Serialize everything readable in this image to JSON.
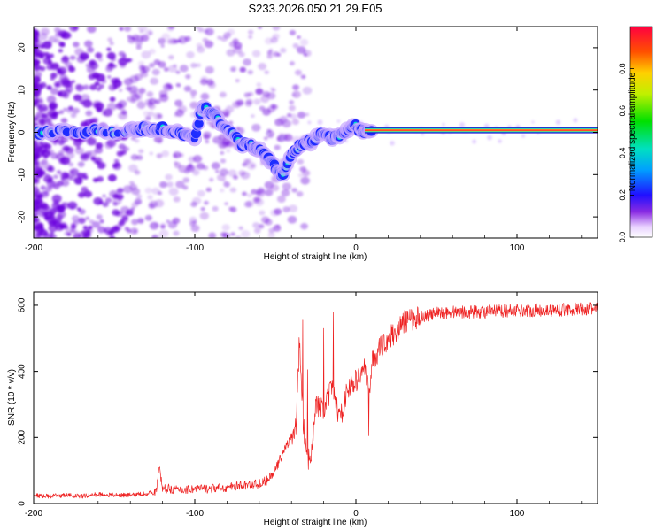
{
  "title": "S233.2026.050.21.29.E05",
  "colors": {
    "snr_line": "#ee2222",
    "ridge_high": "#ff0040",
    "ridge_mid": "#00ddcc",
    "ridge_low": "#1020ff",
    "noise": "#6a00dd"
  },
  "chart_data": [
    {
      "type": "heatmap",
      "name": "spectrogram",
      "title": "S233.2026.050.21.29.E05",
      "xlabel": "Height of straight line (km)",
      "ylabel": "Frequency (Hz)",
      "xlim": [
        -200,
        150
      ],
      "ylim": [
        -25,
        25
      ],
      "xticks": [
        -200,
        -100,
        0,
        100
      ],
      "xtick_labels": [
        "-200",
        "-100",
        "0",
        "100"
      ],
      "yticks": [
        -20,
        -10,
        0,
        10,
        20
      ],
      "ytick_labels": [
        "-20",
        "-10",
        "0",
        "10",
        "20"
      ],
      "ridge": {
        "description": "doppler tone frequency vs height",
        "x": [
          -200,
          -190,
          -180,
          -170,
          -160,
          -150,
          -140,
          -130,
          -120,
          -115,
          -110,
          -105,
          -100,
          -95,
          -92,
          -88,
          -84,
          -80,
          -75,
          -70,
          -65,
          -60,
          -55,
          -50,
          -47,
          -44,
          -42,
          -40,
          -37,
          -34,
          -30,
          -27,
          -24,
          -20,
          -17,
          -14,
          -11,
          -8,
          -5,
          -2,
          0,
          2,
          5,
          10,
          20,
          40,
          60,
          80,
          100,
          120,
          150
        ],
        "y": [
          0,
          0,
          0.5,
          0,
          0.5,
          0,
          0.5,
          0.8,
          0.8,
          0.5,
          0,
          -0.5,
          -1,
          6,
          5,
          4,
          2,
          1,
          -1,
          -3,
          -3,
          -4,
          -6,
          -8,
          -10,
          -9,
          -7,
          -5,
          -4,
          -3,
          -2,
          -2.5,
          -1,
          0,
          -1,
          -1.5,
          -1,
          0,
          0.5,
          2,
          1.5,
          0.5,
          0,
          0,
          0,
          0,
          0,
          0,
          0,
          0,
          0
        ]
      },
      "colorbar": {
        "label": "Normalized spectral amplitude",
        "range": [
          0,
          1
        ],
        "ticks": [
          0.0,
          0.2,
          0.4,
          0.6,
          0.8
        ],
        "tick_labels": [
          "0.0",
          "0.2",
          "0.4",
          "0.6",
          "0.8"
        ]
      }
    },
    {
      "type": "line",
      "name": "snr",
      "xlabel": "Height of straight line (km)",
      "ylabel": "SNR (10 * v/v)",
      "xlim": [
        -200,
        150
      ],
      "ylim": [
        0,
        640
      ],
      "xticks": [
        -200,
        -100,
        0,
        100
      ],
      "xtick_labels": [
        "-200",
        "-100",
        "0",
        "100"
      ],
      "yticks": [
        0,
        200,
        400,
        600
      ],
      "ytick_labels": [
        "0",
        "200",
        "400",
        "600"
      ],
      "series": [
        {
          "name": "SNR",
          "x": [
            -200,
            -190,
            -180,
            -170,
            -160,
            -150,
            -140,
            -130,
            -124,
            -122,
            -120,
            -115,
            -110,
            -100,
            -90,
            -80,
            -70,
            -60,
            -55,
            -50,
            -45,
            -40,
            -37,
            -35,
            -33,
            -30,
            -28,
            -25,
            -20,
            -15,
            -12,
            -10,
            -5,
            0,
            3,
            5,
            8,
            10,
            15,
            20,
            25,
            30,
            40,
            50,
            60,
            80,
            100,
            120,
            150
          ],
          "y": [
            25,
            22,
            25,
            22,
            28,
            25,
            26,
            30,
            35,
            110,
            45,
            45,
            40,
            45,
            45,
            48,
            55,
            60,
            70,
            100,
            160,
            200,
            240,
            500,
            260,
            120,
            150,
            300,
            280,
            350,
            300,
            250,
            350,
            370,
            390,
            420,
            330,
            430,
            470,
            500,
            520,
            550,
            565,
            575,
            580,
            580,
            585,
            585,
            590
          ],
          "spikes": [
            {
              "x": -33,
              "y": 555
            },
            {
              "x": -30,
              "y": 405
            },
            {
              "x": -20,
              "y": 530
            },
            {
              "x": -14,
              "y": 580
            },
            {
              "x": 8,
              "y": 205
            }
          ]
        }
      ]
    }
  ]
}
